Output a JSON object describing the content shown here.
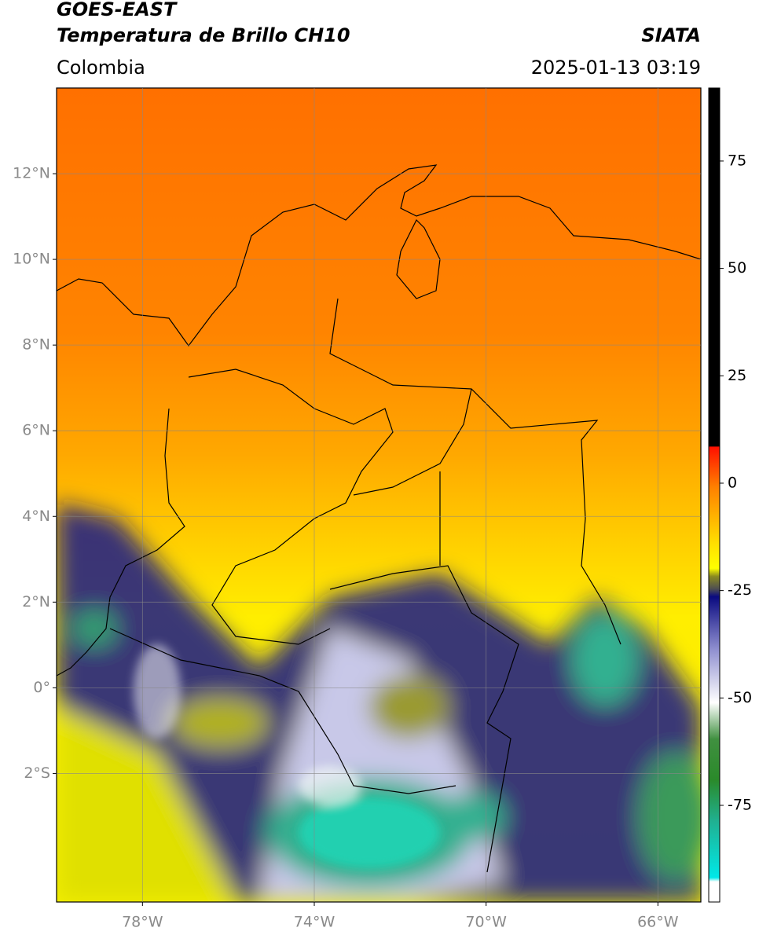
{
  "header": {
    "title_line1": "GOES-EAST",
    "title_line2": "Temperatura de Brillo CH10",
    "region": "Colombia",
    "source": "SIATA",
    "datetime": "2025-01-13 03:19"
  },
  "map": {
    "lonlim": [
      -80,
      -65
    ],
    "latlim": [
      -5,
      14
    ],
    "lon_ticks": [
      {
        "value": -78,
        "label": "78°W"
      },
      {
        "value": -74,
        "label": "74°W"
      },
      {
        "value": -70,
        "label": "70°W"
      },
      {
        "value": -66,
        "label": "66°W"
      }
    ],
    "lat_ticks": [
      {
        "value": 12,
        "label": "12°N"
      },
      {
        "value": 10,
        "label": "10°N"
      },
      {
        "value": 8,
        "label": "8°N"
      },
      {
        "value": 6,
        "label": "6°N"
      },
      {
        "value": 4,
        "label": "4°N"
      },
      {
        "value": 2,
        "label": "2°N"
      },
      {
        "value": 0,
        "label": "0°"
      },
      {
        "value": -2,
        "label": "2°S"
      }
    ],
    "grid": true
  },
  "colorbar": {
    "lim": [
      -97.5,
      92
    ],
    "ticks": [
      75,
      50,
      25,
      0,
      -25,
      -50,
      -75
    ]
  }
}
